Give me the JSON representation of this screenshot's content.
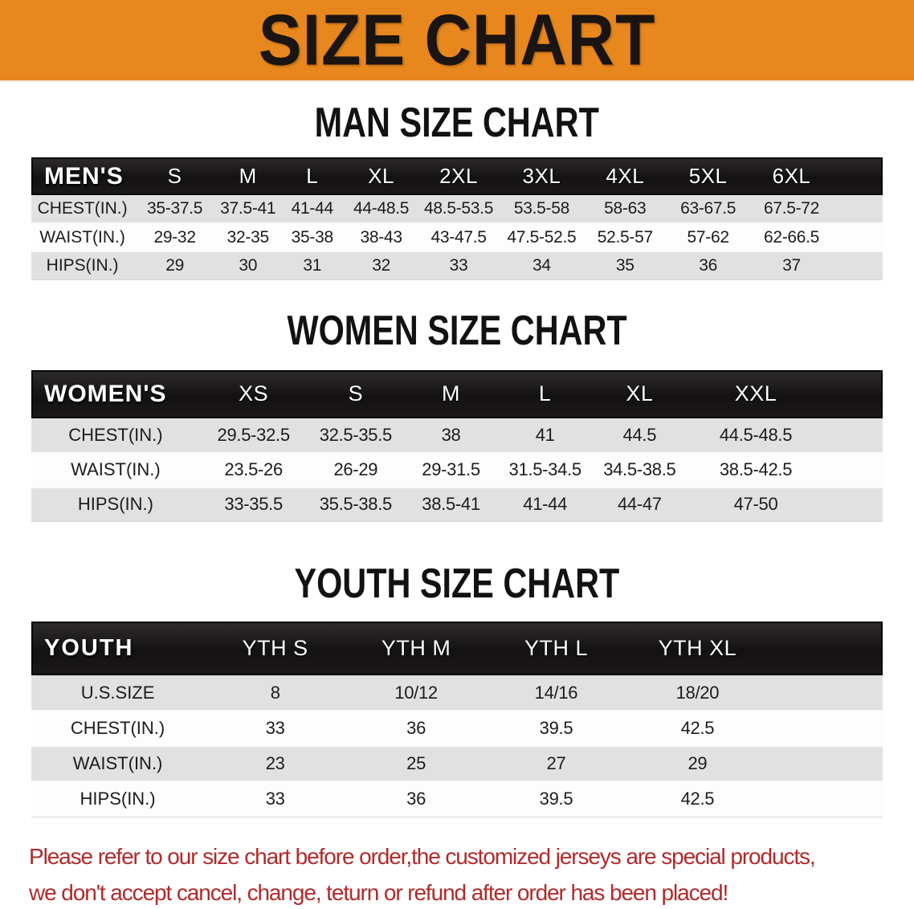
{
  "banner": {
    "title": "SIZE CHART",
    "bg_color": "#E8871E"
  },
  "sections": [
    {
      "heading": "MAN SIZE CHART",
      "table": {
        "header_label": "MEN'S",
        "columns": [
          "S",
          "M",
          "L",
          "XL",
          "2XL",
          "3XL",
          "4XL",
          "5XL",
          "6XL"
        ],
        "rows": [
          {
            "label": "CHEST(IN.)",
            "values": [
              "35-37.5",
              "37.5-41",
              "41-44",
              "44-48.5",
              "48.5-53.5",
              "53.5-58",
              "58-63",
              "63-67.5",
              "67.5-72"
            ]
          },
          {
            "label": "WAIST(IN.)",
            "values": [
              "29-32",
              "32-35",
              "35-38",
              "38-43",
              "43-47.5",
              "47.5-52.5",
              "52.5-57",
              "57-62",
              "62-66.5"
            ]
          },
          {
            "label": "HIPS(IN.)",
            "values": [
              "29",
              "30",
              "31",
              "32",
              "33",
              "34",
              "35",
              "36",
              "37"
            ]
          }
        ]
      }
    },
    {
      "heading": "WOMEN SIZE CHART",
      "table": {
        "header_label": "WOMEN'S",
        "columns": [
          "XS",
          "S",
          "M",
          "L",
          "XL",
          "XXL"
        ],
        "rows": [
          {
            "label": "CHEST(IN.)",
            "values": [
              "29.5-32.5",
              "32.5-35.5",
              "38",
              "41",
              "44.5",
              "44.5-48.5"
            ]
          },
          {
            "label": "WAIST(IN.)",
            "values": [
              "23.5-26",
              "26-29",
              "29-31.5",
              "31.5-34.5",
              "34.5-38.5",
              "38.5-42.5"
            ]
          },
          {
            "label": "HIPS(IN.)",
            "values": [
              "33-35.5",
              "35.5-38.5",
              "38.5-41",
              "41-44",
              "44-47",
              "47-50"
            ]
          }
        ]
      }
    },
    {
      "heading": "YOUTH SIZE CHART",
      "table": {
        "header_label": "YOUTH",
        "columns": [
          "YTH S",
          "YTH M",
          "YTH L",
          "YTH XL"
        ],
        "rows": [
          {
            "label": "U.S.SIZE",
            "values": [
              "8",
              "10/12",
              "14/16",
              "18/20"
            ]
          },
          {
            "label": "CHEST(IN.)",
            "values": [
              "33",
              "36",
              "39.5",
              "42.5"
            ]
          },
          {
            "label": "WAIST(IN.)",
            "values": [
              "23",
              "25",
              "27",
              "29"
            ]
          },
          {
            "label": "HIPS(IN.)",
            "values": [
              "33",
              "36",
              "39.5",
              "42.5"
            ]
          }
        ]
      }
    }
  ],
  "footer": {
    "line1": "Please refer to our size chart before order,the customized jerseys are special products,",
    "line2": "we don't accept cancel, change, teturn or refund after order has been placed!",
    "text_color": "#B02A2B"
  }
}
